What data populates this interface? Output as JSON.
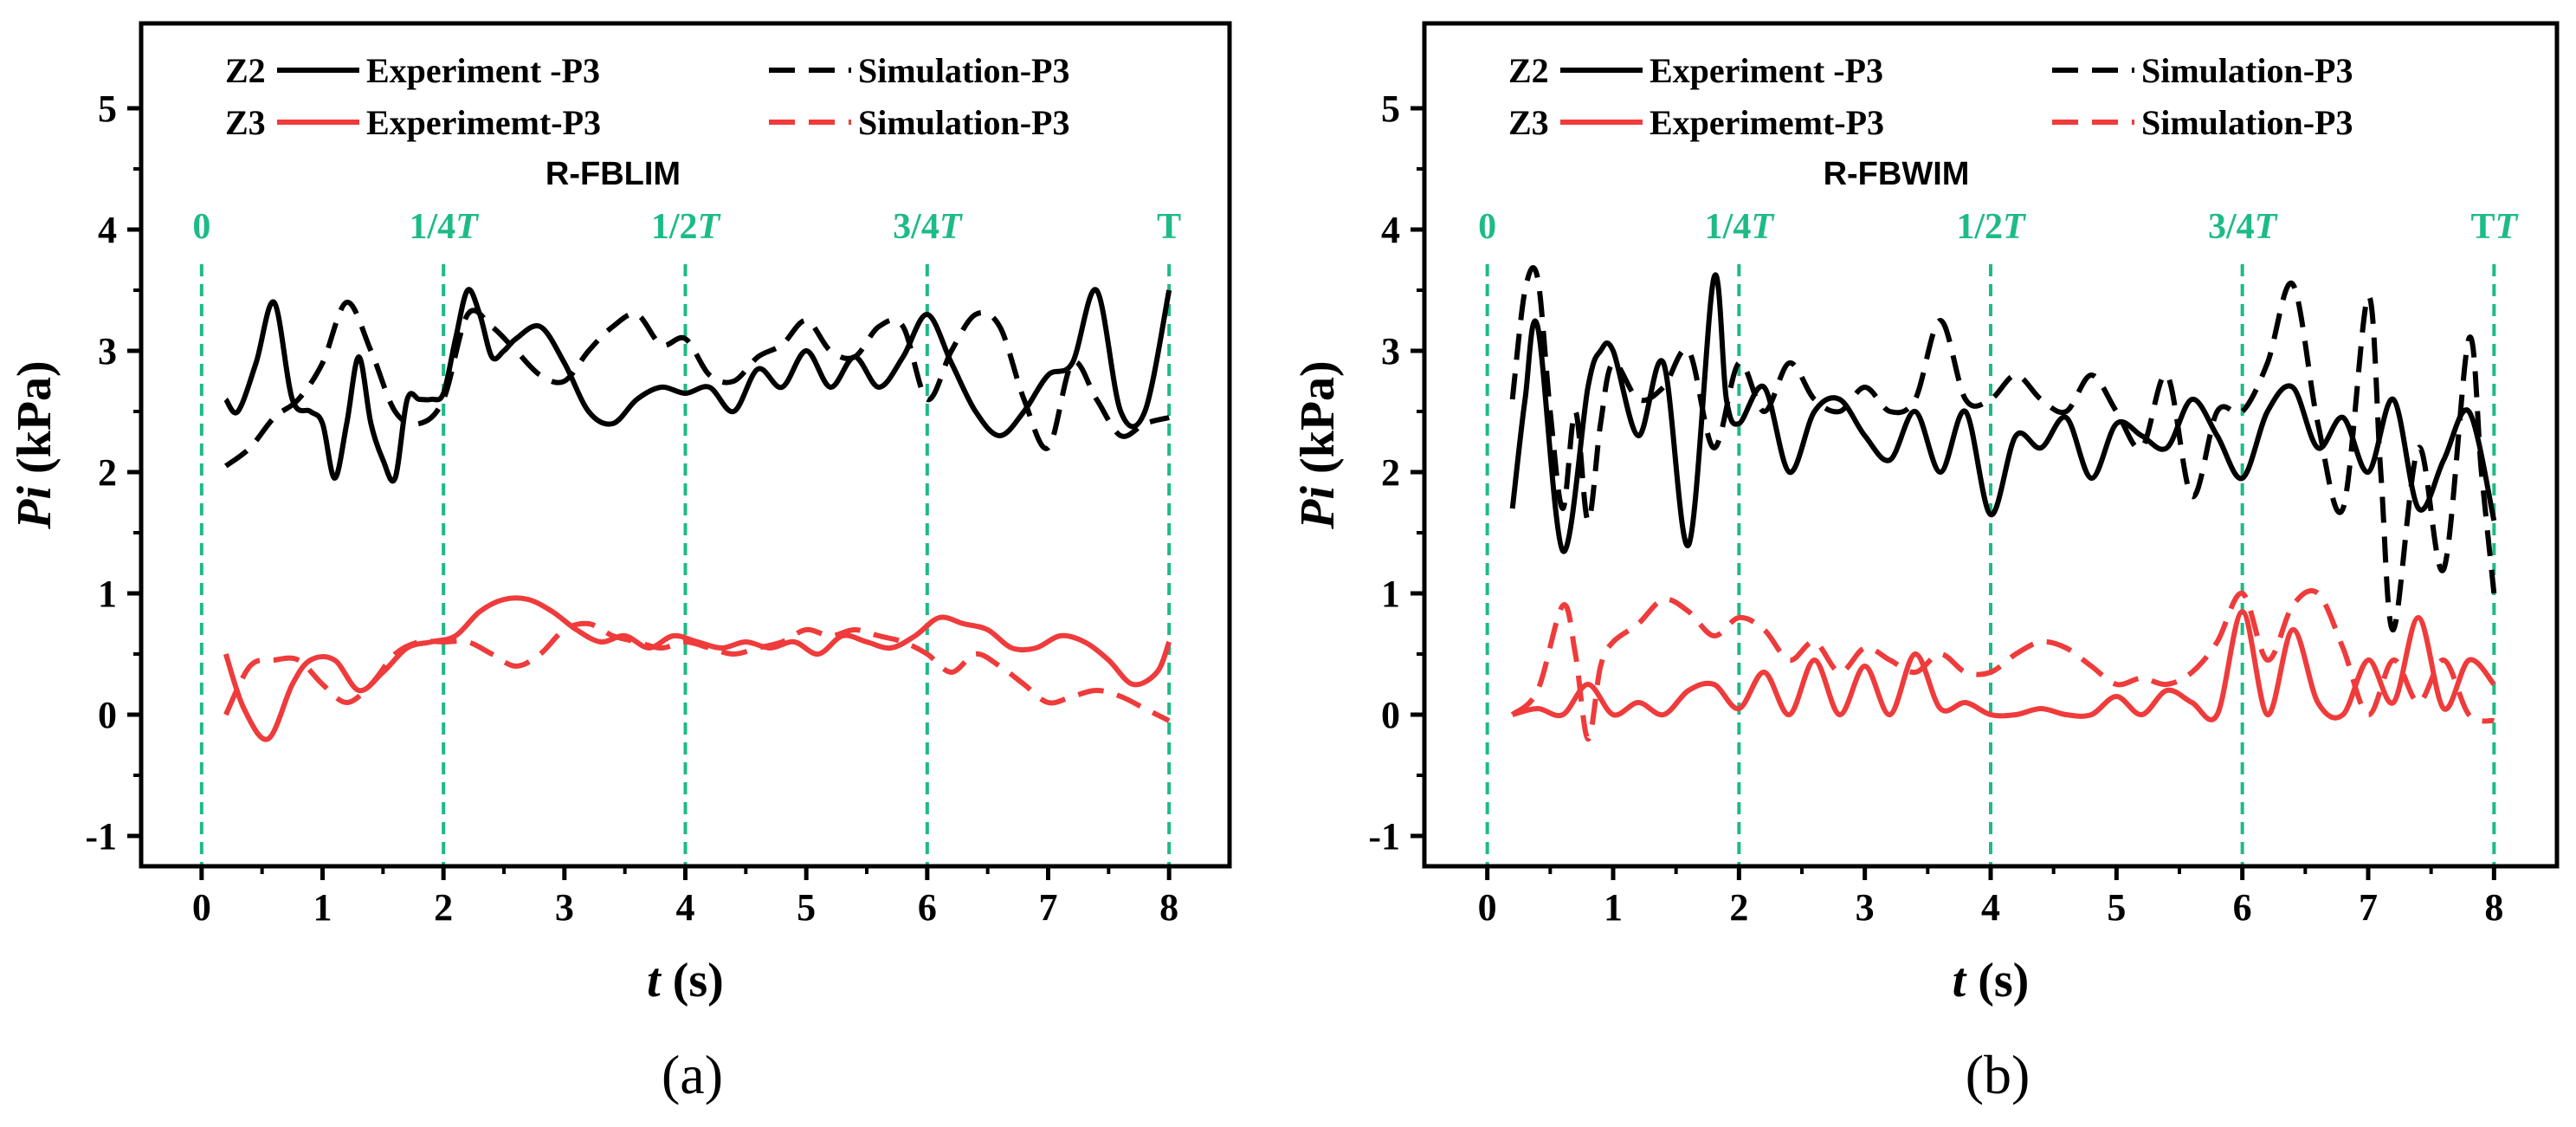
{
  "chart_data": [
    {
      "type": "line",
      "panel_label": "(a)",
      "model": "R-FBLIM",
      "xlabel_var": "t",
      "xlabel_unit": " (s)",
      "ylabel_var": "Pi",
      "ylabel_unit": " (kPa)",
      "xlim": [
        -0.5,
        8.5
      ],
      "ylim": [
        -1.25,
        5.7
      ],
      "xticks": [
        0,
        1,
        2,
        3,
        4,
        5,
        6,
        7,
        8
      ],
      "yticks": [
        -1,
        0,
        1,
        2,
        3,
        4,
        5
      ],
      "legend": [
        {
          "group": "Z2",
          "group_color": "#000000",
          "name": "Experiment -P3",
          "color": "#000000",
          "dash": "solid"
        },
        {
          "group": "",
          "group_color": "#000000",
          "name": "Simulation-P3",
          "color": "#000000",
          "dash": "dashed"
        },
        {
          "group": "Z3",
          "group_color": "#ef3b3b",
          "name": "Experimemt-P3",
          "color": "#ef3b3b",
          "dash": "solid"
        },
        {
          "group": "",
          "group_color": "#ef3b3b",
          "name": "Simulation-P3",
          "color": "#ef3b3b",
          "dash": "dashed"
        }
      ],
      "time_markers": [
        {
          "x": 0,
          "label": "0",
          "italic_T": false
        },
        {
          "x": 2,
          "label": "1/4",
          "italic_T": true
        },
        {
          "x": 4,
          "label": "1/2",
          "italic_T": true
        },
        {
          "x": 6,
          "label": "3/4",
          "italic_T": true
        },
        {
          "x": 8,
          "label": "T",
          "italic_T": false
        }
      ],
      "series": [
        {
          "name": "Z2 Experiment -P3",
          "color": "#000000",
          "dash": "solid",
          "x": [
            0.2,
            0.3,
            0.45,
            0.6,
            0.75,
            0.9,
            1.0,
            1.1,
            1.2,
            1.3,
            1.4,
            1.5,
            1.6,
            1.7,
            1.8,
            1.9,
            2.0,
            2.1,
            2.2,
            2.3,
            2.4,
            2.5,
            2.6,
            2.8,
            3.0,
            3.2,
            3.4,
            3.6,
            3.8,
            4.0,
            4.2,
            4.4,
            4.6,
            4.8,
            5.0,
            5.2,
            5.4,
            5.6,
            5.8,
            6.0,
            6.2,
            6.4,
            6.6,
            6.8,
            7.0,
            7.2,
            7.4,
            7.6,
            7.8,
            8.0
          ],
          "y": [
            2.6,
            2.5,
            2.9,
            3.4,
            2.6,
            2.5,
            2.4,
            1.95,
            2.4,
            2.95,
            2.4,
            2.1,
            1.95,
            2.6,
            2.6,
            2.6,
            2.65,
            3.1,
            3.5,
            3.3,
            2.95,
            3.0,
            3.1,
            3.2,
            2.9,
            2.5,
            2.4,
            2.6,
            2.7,
            2.65,
            2.7,
            2.5,
            2.85,
            2.7,
            3.0,
            2.7,
            2.95,
            2.7,
            2.95,
            3.3,
            2.9,
            2.5,
            2.3,
            2.5,
            2.8,
            2.9,
            3.5,
            2.5,
            2.5,
            3.5
          ]
        },
        {
          "name": "Z2 Simulation-P3",
          "color": "#000000",
          "dash": "dashed",
          "x": [
            0.2,
            0.4,
            0.6,
            0.8,
            1.0,
            1.2,
            1.4,
            1.6,
            1.8,
            2.0,
            2.2,
            2.4,
            2.6,
            2.8,
            3.0,
            3.2,
            3.4,
            3.6,
            3.8,
            4.0,
            4.2,
            4.4,
            4.6,
            4.8,
            5.0,
            5.2,
            5.4,
            5.6,
            5.8,
            6.0,
            6.2,
            6.4,
            6.6,
            6.8,
            7.0,
            7.2,
            7.4,
            7.6,
            7.8,
            8.0
          ],
          "y": [
            2.05,
            2.2,
            2.45,
            2.6,
            2.9,
            3.4,
            3.0,
            2.5,
            2.4,
            2.6,
            3.3,
            3.2,
            3.0,
            2.8,
            2.75,
            3.0,
            3.2,
            3.3,
            3.05,
            3.1,
            2.8,
            2.75,
            2.95,
            3.05,
            3.25,
            3.0,
            2.95,
            3.2,
            3.2,
            2.6,
            3.0,
            3.3,
            3.2,
            2.6,
            2.2,
            2.9,
            2.6,
            2.3,
            2.4,
            2.45
          ]
        },
        {
          "name": "Z3 Experimemt-P3",
          "color": "#ef3b3b",
          "dash": "solid",
          "x": [
            0.2,
            0.35,
            0.55,
            0.75,
            0.9,
            1.1,
            1.3,
            1.5,
            1.7,
            1.9,
            2.1,
            2.3,
            2.5,
            2.7,
            2.9,
            3.1,
            3.3,
            3.5,
            3.7,
            3.9,
            4.1,
            4.3,
            4.5,
            4.7,
            4.9,
            5.1,
            5.3,
            5.5,
            5.7,
            5.9,
            6.1,
            6.3,
            6.5,
            6.7,
            6.9,
            7.1,
            7.3,
            7.5,
            7.7,
            7.9,
            8.0
          ],
          "y": [
            0.5,
            0.05,
            -0.2,
            0.25,
            0.45,
            0.45,
            0.2,
            0.35,
            0.55,
            0.6,
            0.65,
            0.85,
            0.95,
            0.95,
            0.85,
            0.7,
            0.6,
            0.65,
            0.55,
            0.65,
            0.6,
            0.55,
            0.6,
            0.55,
            0.6,
            0.5,
            0.65,
            0.6,
            0.55,
            0.65,
            0.8,
            0.75,
            0.7,
            0.55,
            0.55,
            0.65,
            0.6,
            0.45,
            0.25,
            0.35,
            0.6
          ]
        },
        {
          "name": "Z3 Simulation-P3",
          "color": "#ef3b3b",
          "dash": "dashed",
          "x": [
            0.2,
            0.4,
            0.6,
            0.8,
            1.0,
            1.2,
            1.4,
            1.6,
            1.8,
            2.0,
            2.2,
            2.4,
            2.6,
            2.8,
            3.0,
            3.2,
            3.4,
            3.6,
            3.8,
            4.0,
            4.2,
            4.4,
            4.6,
            4.8,
            5.0,
            5.2,
            5.4,
            5.6,
            5.8,
            6.0,
            6.2,
            6.4,
            6.6,
            6.8,
            7.0,
            7.2,
            7.4,
            7.6,
            7.8,
            8.0
          ],
          "y": [
            0.0,
            0.4,
            0.45,
            0.45,
            0.25,
            0.1,
            0.25,
            0.5,
            0.6,
            0.6,
            0.6,
            0.5,
            0.4,
            0.5,
            0.7,
            0.75,
            0.65,
            0.6,
            0.55,
            0.6,
            0.55,
            0.5,
            0.55,
            0.6,
            0.7,
            0.65,
            0.7,
            0.65,
            0.6,
            0.5,
            0.35,
            0.5,
            0.4,
            0.25,
            0.1,
            0.15,
            0.2,
            0.15,
            0.05,
            -0.05
          ]
        }
      ]
    },
    {
      "type": "line",
      "panel_label": "(b)",
      "model": "R-FBWIM",
      "xlabel_var": "t",
      "xlabel_unit": " (s)",
      "ylabel_var": "Pi",
      "ylabel_unit": " (kPa)",
      "xlim": [
        -0.5,
        8.5
      ],
      "ylim": [
        -1.25,
        5.7
      ],
      "xticks": [
        0,
        1,
        2,
        3,
        4,
        5,
        6,
        7,
        8
      ],
      "yticks": [
        -1,
        0,
        1,
        2,
        3,
        4,
        5
      ],
      "legend": [
        {
          "group": "Z2",
          "group_color": "#000000",
          "name": "Experiment -P3",
          "color": "#000000",
          "dash": "solid"
        },
        {
          "group": "",
          "group_color": "#000000",
          "name": "Simulation-P3",
          "color": "#000000",
          "dash": "dashed"
        },
        {
          "group": "Z3",
          "group_color": "#ef3b3b",
          "name": "Experimemt-P3",
          "color": "#ef3b3b",
          "dash": "solid"
        },
        {
          "group": "",
          "group_color": "#ef3b3b",
          "name": "Simulation-P3",
          "color": "#ef3b3b",
          "dash": "dashed"
        }
      ],
      "time_markers": [
        {
          "x": 0,
          "label": "0",
          "italic_T": false
        },
        {
          "x": 2,
          "label": "1/4",
          "italic_T": true
        },
        {
          "x": 4,
          "label": "1/2",
          "italic_T": true
        },
        {
          "x": 6,
          "label": "3/4",
          "italic_T": true
        },
        {
          "x": 8,
          "label": "T",
          "italic_T": true
        }
      ],
      "series": [
        {
          "name": "Z2 Experiment -P3",
          "color": "#000000",
          "dash": "solid",
          "x": [
            0.2,
            0.3,
            0.4,
            0.6,
            0.8,
            0.9,
            1.0,
            1.2,
            1.4,
            1.6,
            1.8,
            1.9,
            2.0,
            2.2,
            2.4,
            2.6,
            2.8,
            3.0,
            3.2,
            3.4,
            3.6,
            3.8,
            4.0,
            4.2,
            4.4,
            4.6,
            4.8,
            5.0,
            5.2,
            5.4,
            5.6,
            5.8,
            6.0,
            6.2,
            6.4,
            6.6,
            6.8,
            7.0,
            7.2,
            7.4,
            7.6,
            7.8,
            8.0
          ],
          "y": [
            1.7,
            2.6,
            3.2,
            1.35,
            2.7,
            3.0,
            3.0,
            2.3,
            2.9,
            1.4,
            3.6,
            2.6,
            2.4,
            2.7,
            2.0,
            2.5,
            2.6,
            2.3,
            2.1,
            2.5,
            2.0,
            2.5,
            1.65,
            2.3,
            2.2,
            2.45,
            1.95,
            2.4,
            2.3,
            2.2,
            2.6,
            2.3,
            1.95,
            2.5,
            2.7,
            2.2,
            2.45,
            2.0,
            2.6,
            1.7,
            2.1,
            2.5,
            1.6
          ]
        },
        {
          "name": "Z2 Simulation-P3",
          "color": "#000000",
          "dash": "dashed",
          "x": [
            0.2,
            0.3,
            0.4,
            0.5,
            0.6,
            0.7,
            0.8,
            0.9,
            1.0,
            1.2,
            1.4,
            1.6,
            1.8,
            2.0,
            2.2,
            2.4,
            2.6,
            2.8,
            3.0,
            3.2,
            3.4,
            3.6,
            3.8,
            4.0,
            4.2,
            4.4,
            4.6,
            4.8,
            5.0,
            5.2,
            5.4,
            5.6,
            5.8,
            6.0,
            6.2,
            6.4,
            6.6,
            6.8,
            7.0,
            7.1,
            7.2,
            7.4,
            7.6,
            7.8,
            7.9,
            8.0
          ],
          "y": [
            2.6,
            3.5,
            3.6,
            2.5,
            1.7,
            2.5,
            1.6,
            2.4,
            2.9,
            2.6,
            2.7,
            3.0,
            2.2,
            2.9,
            2.5,
            2.9,
            2.6,
            2.5,
            2.7,
            2.5,
            2.6,
            3.25,
            2.6,
            2.6,
            2.8,
            2.6,
            2.5,
            2.8,
            2.5,
            2.2,
            2.8,
            1.8,
            2.5,
            2.5,
            2.9,
            3.55,
            2.4,
            1.7,
            3.45,
            2.0,
            0.7,
            2.2,
            1.2,
            3.1,
            2.0,
            1.0
          ]
        },
        {
          "name": "Z3 Experimemt-P3",
          "color": "#ef3b3b",
          "dash": "solid",
          "x": [
            0.2,
            0.4,
            0.6,
            0.8,
            1.0,
            1.2,
            1.4,
            1.6,
            1.8,
            2.0,
            2.2,
            2.4,
            2.6,
            2.8,
            3.0,
            3.2,
            3.4,
            3.6,
            3.8,
            4.0,
            4.2,
            4.4,
            4.6,
            4.8,
            5.0,
            5.2,
            5.4,
            5.6,
            5.8,
            6.0,
            6.2,
            6.4,
            6.6,
            6.8,
            7.0,
            7.2,
            7.4,
            7.6,
            7.8,
            8.0
          ],
          "y": [
            0.0,
            0.05,
            0.0,
            0.25,
            0.0,
            0.1,
            0.0,
            0.2,
            0.25,
            0.05,
            0.35,
            0.0,
            0.45,
            0.0,
            0.4,
            0.0,
            0.5,
            0.05,
            0.1,
            0.0,
            0.0,
            0.05,
            0.0,
            0.0,
            0.15,
            0.0,
            0.2,
            0.1,
            0.0,
            0.85,
            0.0,
            0.7,
            0.1,
            0.0,
            0.45,
            0.1,
            0.8,
            0.05,
            0.45,
            0.25
          ]
        },
        {
          "name": "Z3 Simulation-P3",
          "color": "#ef3b3b",
          "dash": "dashed",
          "x": [
            0.2,
            0.4,
            0.6,
            0.7,
            0.8,
            0.9,
            1.0,
            1.2,
            1.4,
            1.6,
            1.8,
            2.0,
            2.2,
            2.4,
            2.6,
            2.8,
            3.0,
            3.2,
            3.4,
            3.6,
            3.8,
            4.0,
            4.2,
            4.4,
            4.6,
            4.8,
            5.0,
            5.2,
            5.4,
            5.6,
            5.8,
            6.0,
            6.2,
            6.4,
            6.6,
            6.8,
            7.0,
            7.2,
            7.4,
            7.6,
            7.8,
            8.0
          ],
          "y": [
            0.0,
            0.2,
            0.9,
            0.5,
            -0.2,
            0.4,
            0.6,
            0.75,
            0.95,
            0.85,
            0.65,
            0.8,
            0.7,
            0.45,
            0.6,
            0.35,
            0.55,
            0.45,
            0.35,
            0.5,
            0.35,
            0.35,
            0.5,
            0.6,
            0.55,
            0.4,
            0.25,
            0.3,
            0.25,
            0.35,
            0.6,
            1.0,
            0.45,
            0.9,
            1.0,
            0.55,
            0.0,
            0.45,
            0.1,
            0.45,
            0.0,
            -0.05
          ]
        }
      ]
    }
  ]
}
